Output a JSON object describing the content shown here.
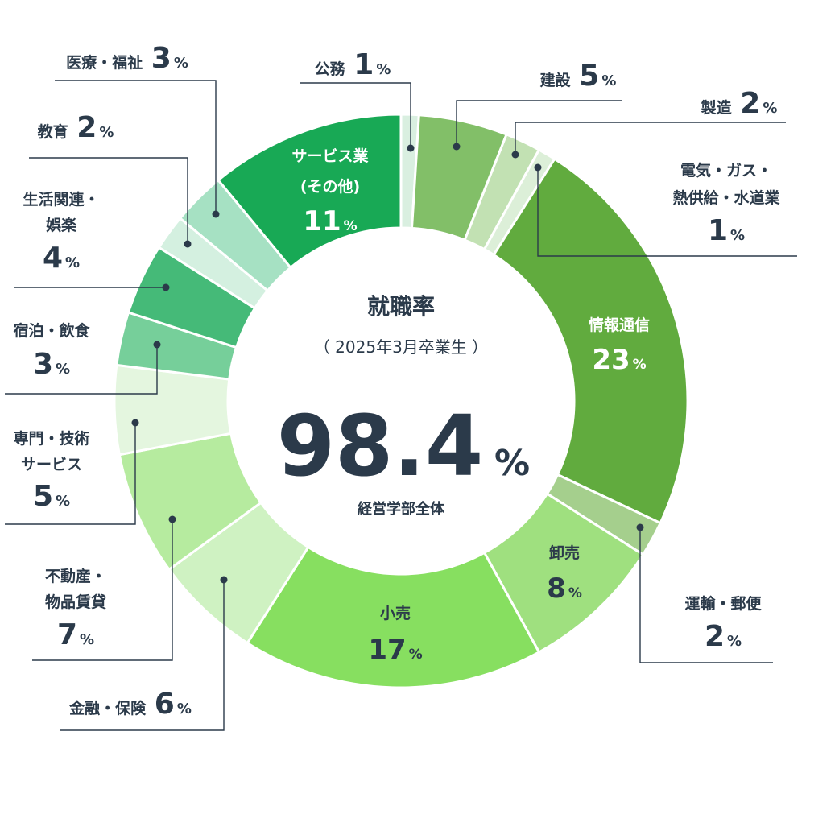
{
  "chart_data": {
    "type": "pie",
    "center": {
      "title": "就職率",
      "subtitle": "（ 2025年3月卒業生 ）",
      "value": "98.4",
      "unit": "%",
      "caption": "経営学部全体"
    },
    "slices": [
      {
        "name": "公務",
        "value": 1,
        "color": "#d9efe0",
        "pos": "out"
      },
      {
        "name": "建設",
        "value": 5,
        "color": "#82bf68",
        "pos": "out"
      },
      {
        "name": "製造",
        "value": 2,
        "color": "#c2e1b3",
        "pos": "out"
      },
      {
        "name": "電気・ガス・熱供給・水道業",
        "lines": [
          "電気・ガス・",
          "熱供給・水道業"
        ],
        "value": 1,
        "color": "#dcefd8",
        "pos": "out"
      },
      {
        "name": "情報通信",
        "value": 23,
        "color": "#61ab3e",
        "pos": "in",
        "text": "light"
      },
      {
        "name": "運輸・郵便",
        "value": 2,
        "color": "#a5cf8d",
        "pos": "out"
      },
      {
        "name": "卸売",
        "value": 8,
        "color": "#9fe07f",
        "pos": "in",
        "text": "dark"
      },
      {
        "name": "小売",
        "value": 17,
        "color": "#87df60",
        "pos": "in",
        "text": "dark"
      },
      {
        "name": "金融・保険",
        "value": 6,
        "color": "#cff2c2",
        "pos": "out"
      },
      {
        "name": "不動産・物品賃貸",
        "lines": [
          "不動産・",
          "物品賃貸"
        ],
        "value": 7,
        "color": "#b6eb9f",
        "pos": "out"
      },
      {
        "name": "専門・技術サービス",
        "lines": [
          "専門・技術",
          "サービス"
        ],
        "value": 5,
        "color": "#e4f6df",
        "pos": "out"
      },
      {
        "name": "宿泊・飲食",
        "value": 3,
        "color": "#76cf9a",
        "pos": "out"
      },
      {
        "name": "生活関連・娯楽",
        "lines": [
          "生活関連・",
          "娯楽"
        ],
        "value": 4,
        "color": "#45ba78",
        "pos": "out"
      },
      {
        "name": "教育",
        "value": 2,
        "color": "#d4f0e0",
        "pos": "out"
      },
      {
        "name": "医療・福祉",
        "value": 3,
        "color": "#a6e1c3",
        "pos": "out"
      },
      {
        "name": "サービス業(その他)",
        "lines": [
          "サービス業",
          "(その他)"
        ],
        "value": 11,
        "color": "#18a955",
        "pos": "in",
        "text": "light"
      }
    ],
    "unit_label": "%"
  }
}
